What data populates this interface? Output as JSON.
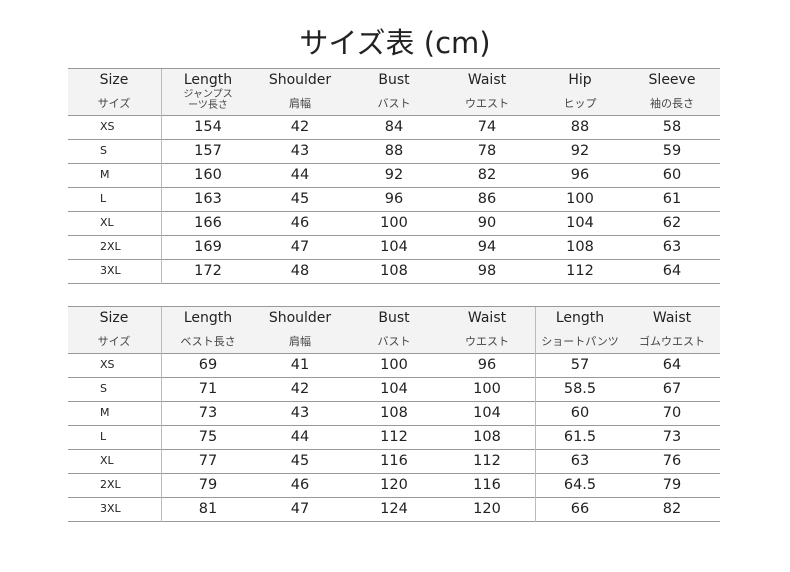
{
  "title": "サイズ表 (cm)",
  "table1": {
    "headers": [
      {
        "en": "Size",
        "jp": "サイズ"
      },
      {
        "en": "Length",
        "jp": "ジャンプス\nーツ長さ"
      },
      {
        "en": "Shoulder",
        "jp": "肩幅"
      },
      {
        "en": "Bust",
        "jp": "バスト"
      },
      {
        "en": "Waist",
        "jp": "ウエスト"
      },
      {
        "en": "Hip",
        "jp": "ヒップ"
      },
      {
        "en": "Sleeve",
        "jp": "袖の長さ"
      }
    ],
    "rows": [
      [
        "XS",
        "154",
        "42",
        "84",
        "74",
        "88",
        "58"
      ],
      [
        "S",
        "157",
        "43",
        "88",
        "78",
        "92",
        "59"
      ],
      [
        "M",
        "160",
        "44",
        "92",
        "82",
        "96",
        "60"
      ],
      [
        "L",
        "163",
        "45",
        "96",
        "86",
        "100",
        "61"
      ],
      [
        "XL",
        "166",
        "46",
        "100",
        "90",
        "104",
        "62"
      ],
      [
        "2XL",
        "169",
        "47",
        "104",
        "94",
        "108",
        "63"
      ],
      [
        "3XL",
        "172",
        "48",
        "108",
        "98",
        "112",
        "64"
      ]
    ]
  },
  "table2": {
    "headers": [
      {
        "en": "Size",
        "jp": "サイズ"
      },
      {
        "en": "Length",
        "jp": "ベスト長さ"
      },
      {
        "en": "Shoulder",
        "jp": "肩幅"
      },
      {
        "en": "Bust",
        "jp": "バスト"
      },
      {
        "en": "Waist",
        "jp": "ウエスト"
      },
      {
        "en": "Length",
        "jp": "ショートパンツ"
      },
      {
        "en": "Waist",
        "jp": "ゴムウエスト"
      }
    ],
    "rows": [
      [
        "XS",
        "69",
        "41",
        "100",
        "96",
        "57",
        "64"
      ],
      [
        "S",
        "71",
        "42",
        "104",
        "100",
        "58.5",
        "67"
      ],
      [
        "M",
        "73",
        "43",
        "108",
        "104",
        "60",
        "70"
      ],
      [
        "L",
        "75",
        "44",
        "112",
        "108",
        "61.5",
        "73"
      ],
      [
        "XL",
        "77",
        "45",
        "116",
        "112",
        "63",
        "76"
      ],
      [
        "2XL",
        "79",
        "46",
        "120",
        "116",
        "64.5",
        "79"
      ],
      [
        "3XL",
        "81",
        "47",
        "124",
        "120",
        "66",
        "82"
      ]
    ]
  }
}
